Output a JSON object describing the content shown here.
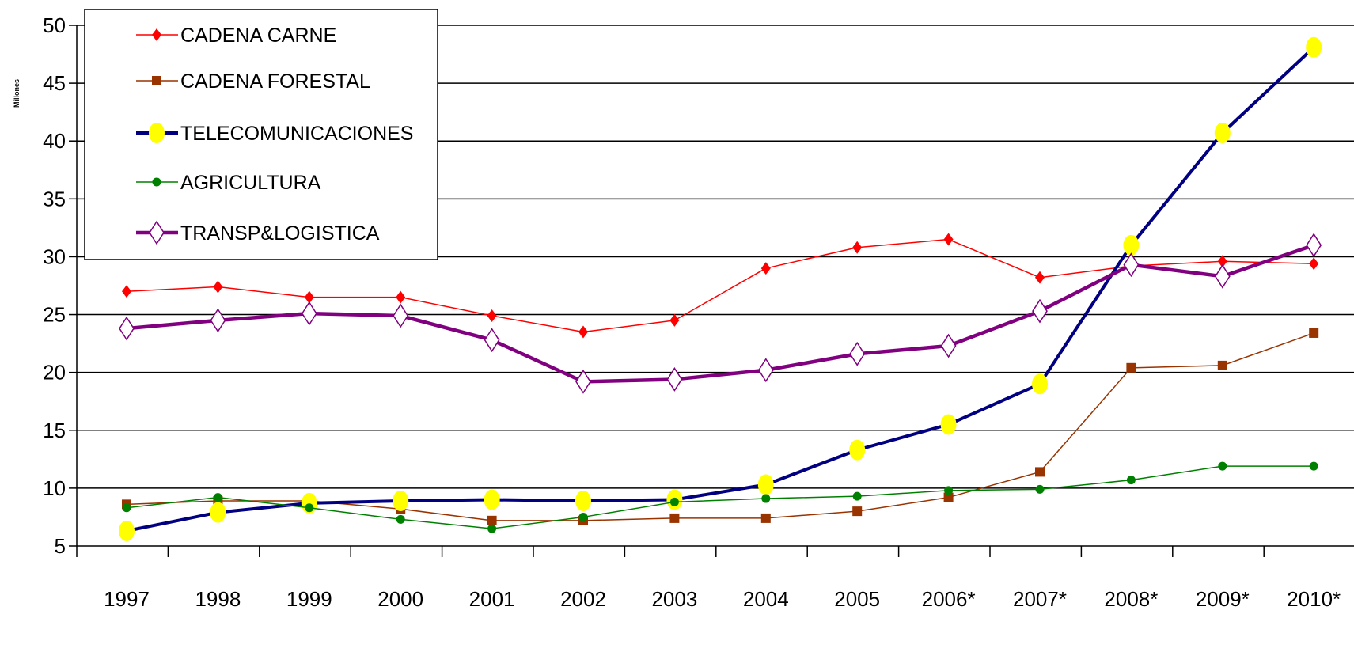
{
  "chart_data": {
    "type": "line",
    "ylabel": "Millones",
    "ylim": [
      5,
      50
    ],
    "yticks": [
      5,
      10,
      15,
      20,
      25,
      30,
      35,
      40,
      45,
      50
    ],
    "grid": "horizontal",
    "legend_position": "top-left",
    "categories": [
      "1997",
      "1998",
      "1999",
      "2000",
      "2001",
      "2002",
      "2003",
      "2004",
      "2005",
      "2006*",
      "2007*",
      "2008*",
      "2009*",
      "2010*"
    ],
    "series": [
      {
        "name": "CADENA CARNE",
        "color": "#ff0000",
        "marker": "diamond",
        "values": [
          27.0,
          27.4,
          26.5,
          26.5,
          24.9,
          23.5,
          24.5,
          29.0,
          30.8,
          31.5,
          28.2,
          29.2,
          29.6,
          29.4
        ]
      },
      {
        "name": "CADENA FORESTAL",
        "color": "#993300",
        "marker": "square",
        "values": [
          8.6,
          8.9,
          8.9,
          8.2,
          7.2,
          7.2,
          7.4,
          7.4,
          8.0,
          9.2,
          11.4,
          20.4,
          20.6,
          23.4
        ]
      },
      {
        "name": "TELECOMUNICACIONES",
        "color": "#000080",
        "marker": "circle-yellow",
        "values": [
          6.3,
          7.9,
          8.7,
          8.9,
          9.0,
          8.9,
          9.0,
          10.3,
          13.3,
          15.5,
          19.0,
          31.0,
          40.7,
          48.1
        ]
      },
      {
        "name": "AGRICULTURA",
        "color": "#008000",
        "marker": "dot",
        "values": [
          8.3,
          9.2,
          8.3,
          7.3,
          6.5,
          7.5,
          8.8,
          9.1,
          9.3,
          9.8,
          9.9,
          10.7,
          11.9,
          11.9
        ]
      },
      {
        "name": "TRANSP&LOGISTICA",
        "color": "#800080",
        "marker": "hollow-diamond",
        "values": [
          23.8,
          24.5,
          25.1,
          24.9,
          22.8,
          19.2,
          19.4,
          20.2,
          21.6,
          22.3,
          25.3,
          29.3,
          28.3,
          31.0
        ]
      }
    ]
  }
}
